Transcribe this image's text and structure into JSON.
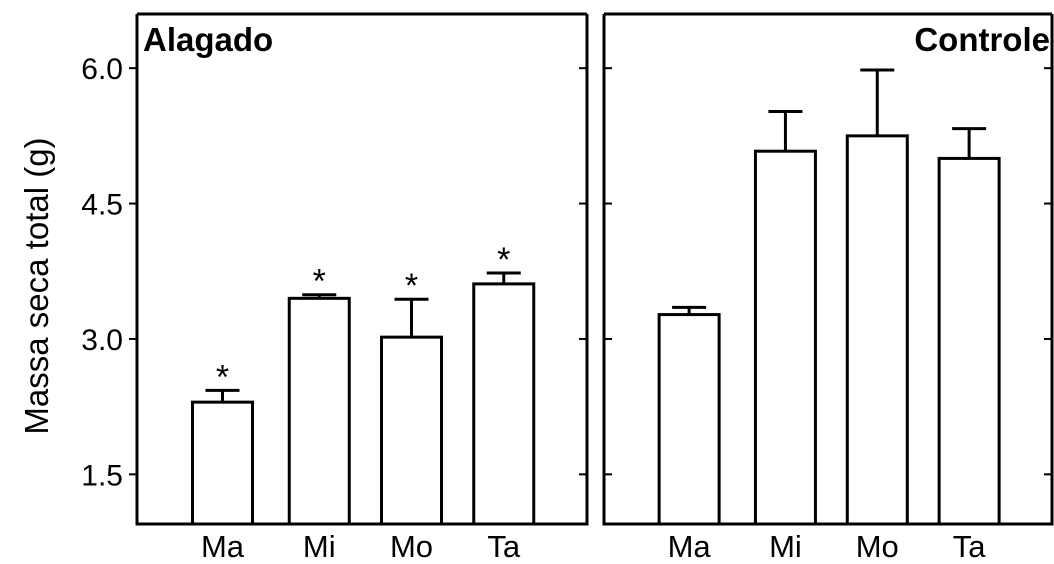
{
  "chart_data": {
    "type": "bar",
    "ylabel": "Massa seca total (g)",
    "ylim": [
      0.95,
      6.6
    ],
    "yticks": [
      1.5,
      3.0,
      4.5,
      6.0
    ],
    "ytick_labels": [
      "1.5",
      "3.0",
      "4.5",
      "6.0"
    ],
    "categories": [
      "Ma",
      "Mi",
      "Mo",
      "Ta"
    ],
    "panels": [
      {
        "title": "Alagado",
        "values": [
          2.3,
          3.45,
          3.02,
          3.61
        ],
        "errors": [
          0.13,
          0.04,
          0.42,
          0.12
        ],
        "significance": [
          "*",
          "*",
          "*",
          "*"
        ]
      },
      {
        "title": "Controle",
        "values": [
          3.27,
          5.08,
          5.25,
          5.0
        ],
        "errors": [
          0.08,
          0.44,
          0.73,
          0.33
        ],
        "significance": [
          "",
          "",
          "",
          ""
        ]
      }
    ]
  }
}
